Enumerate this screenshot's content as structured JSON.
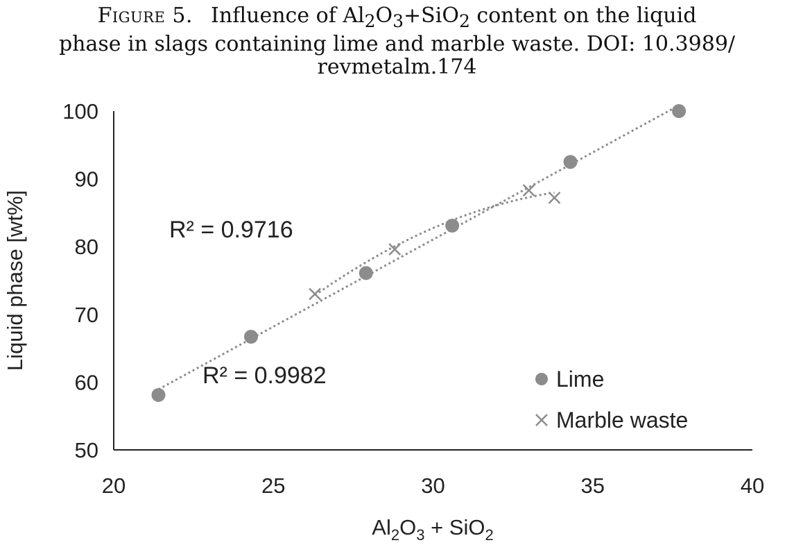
{
  "figure": {
    "label": "Figure 5.",
    "caption_pre": "Influence of",
    "oxide_1": "Al",
    "oxide_1_sub_1": "2",
    "oxide_1_o": "O",
    "oxide_1_sub_2": "3",
    "plus": "+SiO",
    "oxide_2_sub": "2",
    "caption_line1_post": "content on the liquid",
    "caption_line2": "phase in slags containing lime and marble waste. DOI: 10.3989/",
    "caption_line3": "revmetalm.174"
  },
  "chart_data": {
    "type": "scatter",
    "xlabel": "Al2O3 + SiO2",
    "ylabel": "Liquid phase  [wt%]",
    "xlim": [
      20,
      40
    ],
    "ylim": [
      50,
      100
    ],
    "xticks": [
      "20",
      "25",
      "30",
      "35",
      "40"
    ],
    "yticks": [
      "50",
      "60",
      "70",
      "80",
      "90",
      "100"
    ],
    "grid": false,
    "legend_position": "bottom-right",
    "series": [
      {
        "name": "Lime",
        "marker": "circle",
        "color": "#8c8c8c",
        "x": [
          21.4,
          24.3,
          27.9,
          30.6,
          34.3,
          37.7
        ],
        "y": [
          58.1,
          66.7,
          76.1,
          83.1,
          92.5,
          100.0
        ],
        "trendline": "linear",
        "r2_label": "R² = 0.9982"
      },
      {
        "name": "Marble waste",
        "marker": "x",
        "color": "#8c8c8c",
        "x": [
          26.3,
          28.8,
          33.0,
          33.8
        ],
        "y": [
          73.0,
          79.6,
          88.3,
          87.2
        ],
        "trendline": "polynomial",
        "r2_label": "R² = 0.9716"
      }
    ]
  }
}
